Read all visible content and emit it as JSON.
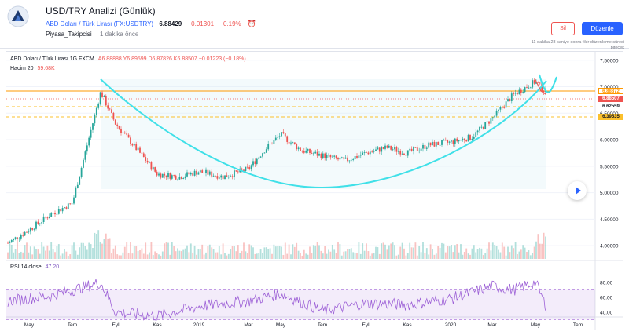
{
  "header": {
    "title": "USD/TRY Analizi (Günlük)",
    "symbol_name": "ABD Doları / Türk Lirası",
    "symbol_code": "(FX:USDTRY)",
    "price": "6.88429",
    "change": "−0.01301",
    "change_pct": "−0.19%",
    "author": "Piyasa_Takipcisi",
    "time_ago": "1 dakika önce"
  },
  "actions": {
    "delete_label": "Sil",
    "edit_label": "Düzenle",
    "note": "11 dakika 23 saniye sonra fikir düzenleme süresi bitecek"
  },
  "legend": {
    "main": "ABD Doları / Türk Lirası  1G  FXCM",
    "ohlc": "A6.88888 Y6.89599 D6.87826 K6.88507 −0.01223 (−0.18%)",
    "volume_label": "Hacim 20",
    "volume_value": "59.68K",
    "rsi_label": "RSI 14 close",
    "rsi_value": "47.20"
  },
  "price_tags": [
    {
      "text": "6.88872",
      "color": "#ff9800",
      "bg": "#ffffff"
    },
    {
      "text": "6.88507",
      "color": "#ffffff",
      "bg": "#ef5350"
    },
    {
      "text": "6.62559",
      "color": "#131722",
      "bg": "#ffffff"
    },
    {
      "text": "6.39535",
      "color": "#131722",
      "bg": "#fbc02d"
    }
  ],
  "colors": {
    "up": "#26a69a",
    "down": "#ef5350",
    "cup": "#40e0e8",
    "rsi": "#9c5fd6",
    "accent": "#2962ff"
  },
  "chart_data": {
    "type": "candlestick",
    "title": "ABD Doları / Türk Lirası 1G FXCM",
    "y_ticks": [
      "7.50000",
      "7.00000",
      "6.50000",
      "6.00000",
      "5.50000",
      "5.00000",
      "4.50000",
      "4.00000"
    ],
    "rsi_ticks": [
      "80.00",
      "60.00",
      "40.00"
    ],
    "x_ticks": [
      "May",
      "Tem",
      "Eyl",
      "Kas",
      "2019",
      "Mar",
      "May",
      "Tem",
      "Eyl",
      "Kas",
      "2020",
      "Mar",
      "May",
      "Tem"
    ],
    "ylim": [
      3.75,
      7.6
    ],
    "horizontal_levels": [
      6.88872,
      6.62559,
      6.39535
    ],
    "last_close": 6.88507,
    "price_path": [
      {
        "x": "2018-04",
        "y": 4.05
      },
      {
        "x": "2018-05",
        "y": 4.3
      },
      {
        "x": "2018-06",
        "y": 4.6
      },
      {
        "x": "2018-07",
        "y": 4.8
      },
      {
        "x": "2018-08",
        "y": 6.9
      },
      {
        "x": "2018-09",
        "y": 6.3
      },
      {
        "x": "2018-10",
        "y": 5.8
      },
      {
        "x": "2018-11",
        "y": 5.35
      },
      {
        "x": "2018-12",
        "y": 5.3
      },
      {
        "x": "2019-01",
        "y": 5.4
      },
      {
        "x": "2019-02",
        "y": 5.3
      },
      {
        "x": "2019-03",
        "y": 5.45
      },
      {
        "x": "2019-04",
        "y": 5.8
      },
      {
        "x": "2019-05",
        "y": 6.1
      },
      {
        "x": "2019-06",
        "y": 5.8
      },
      {
        "x": "2019-07",
        "y": 5.7
      },
      {
        "x": "2019-08",
        "y": 5.6
      },
      {
        "x": "2019-09",
        "y": 5.75
      },
      {
        "x": "2019-10",
        "y": 5.85
      },
      {
        "x": "2019-11",
        "y": 5.75
      },
      {
        "x": "2019-12",
        "y": 5.9
      },
      {
        "x": "2020-01",
        "y": 5.95
      },
      {
        "x": "2020-02",
        "y": 6.05
      },
      {
        "x": "2020-03",
        "y": 6.4
      },
      {
        "x": "2020-04",
        "y": 6.85
      },
      {
        "x": "2020-05",
        "y": 7.1
      },
      {
        "x": "2020-05-end",
        "y": 6.885
      }
    ],
    "rsi_path": [
      {
        "x": "2018-04",
        "y": 55
      },
      {
        "x": "2018-06",
        "y": 62
      },
      {
        "x": "2018-08",
        "y": 80
      },
      {
        "x": "2018-09",
        "y": 40
      },
      {
        "x": "2018-11",
        "y": 35
      },
      {
        "x": "2019-01",
        "y": 48
      },
      {
        "x": "2019-03",
        "y": 55
      },
      {
        "x": "2019-05",
        "y": 65
      },
      {
        "x": "2019-07",
        "y": 42
      },
      {
        "x": "2019-09",
        "y": 52
      },
      {
        "x": "2019-11",
        "y": 50
      },
      {
        "x": "2020-01",
        "y": 58
      },
      {
        "x": "2020-03",
        "y": 75
      },
      {
        "x": "2020-04",
        "y": 70
      },
      {
        "x": "2020-05",
        "y": 80
      },
      {
        "x": "2020-05-end",
        "y": 47.2
      }
    ]
  }
}
